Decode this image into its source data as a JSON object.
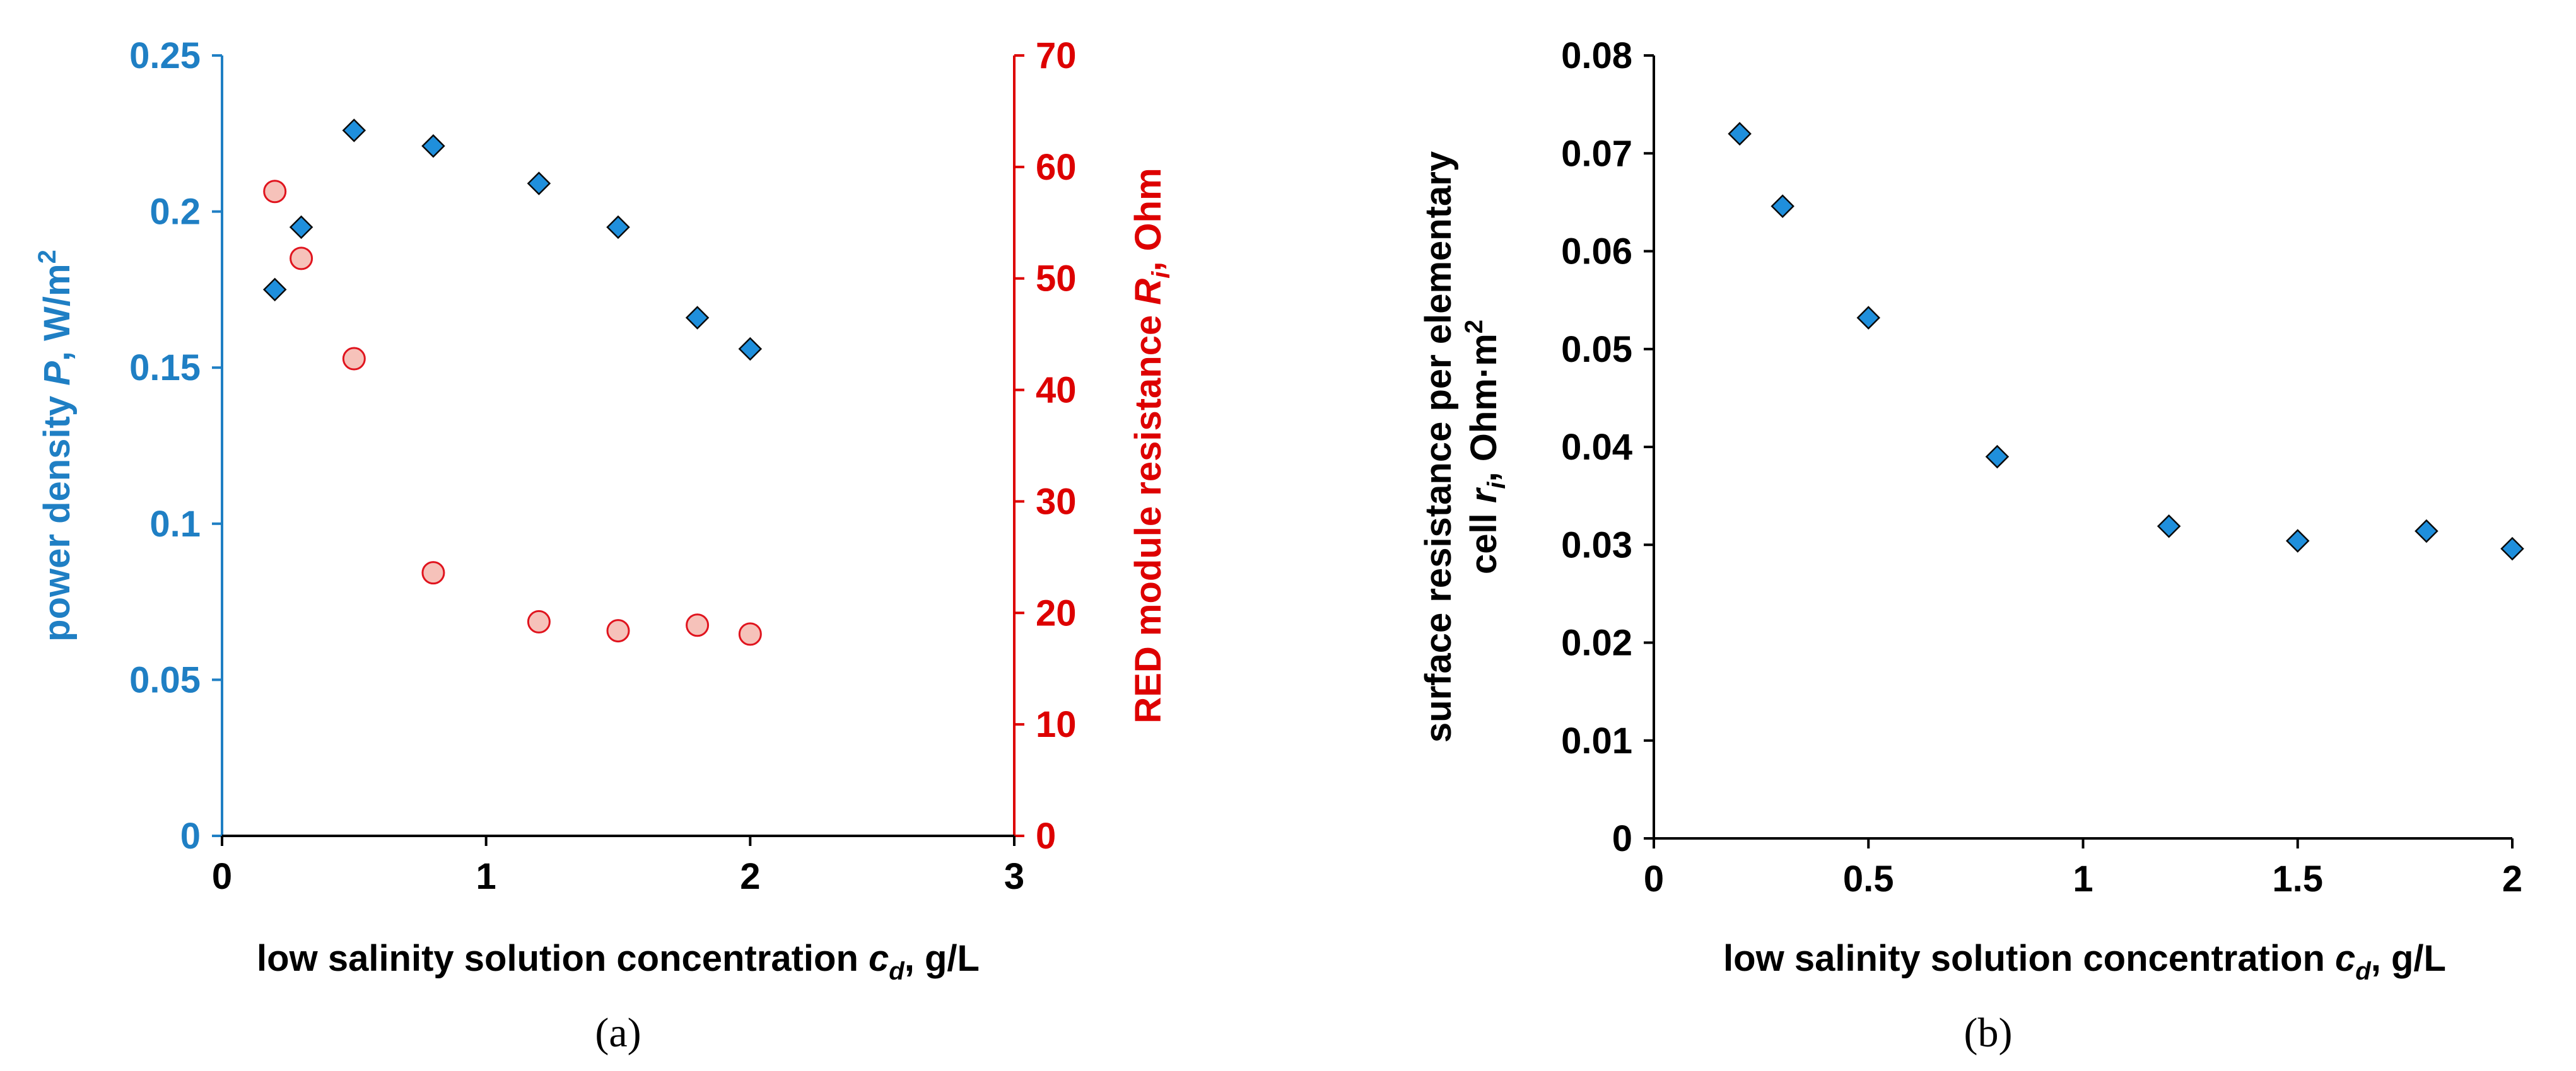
{
  "chart_data": [
    {
      "id": "a",
      "type": "scatter",
      "caption": "(a)",
      "xlabel": {
        "main": "low salinity solution concentration ",
        "var": "c",
        "sub": "d",
        "unit": ", g/L"
      },
      "xlim": [
        0,
        3
      ],
      "xticks": [
        "0",
        "1",
        "2",
        "3"
      ],
      "ylabel_left": {
        "main": "power density ",
        "var": "P",
        "unit": ", W/m",
        "sup": "2"
      },
      "ylim_left": [
        0,
        0.25
      ],
      "yticks_left": [
        "0",
        "0.05",
        "0.1",
        "0.15",
        "0.2",
        "0.25"
      ],
      "ylabel_right": {
        "main": "RED module resistance ",
        "var": "R",
        "sub": "i",
        "unit": ", Ohm"
      },
      "ylim_right": [
        0,
        70
      ],
      "yticks_right": [
        "0",
        "10",
        "20",
        "30",
        "40",
        "50",
        "60",
        "70"
      ],
      "series": [
        {
          "name": "power density P",
          "axis": "left",
          "marker": "diamond",
          "color": "#1f8fdc",
          "x": [
            0.2,
            0.3,
            0.5,
            0.8,
            1.2,
            1.5,
            1.8,
            2.0
          ],
          "y": [
            0.175,
            0.195,
            0.226,
            0.221,
            0.209,
            0.195,
            0.166,
            0.156
          ]
        },
        {
          "name": "RED module resistance Ri",
          "axis": "right",
          "marker": "circle",
          "color": "#f6c2ba",
          "x": [
            0.2,
            0.3,
            0.5,
            0.8,
            1.2,
            1.5,
            1.8,
            2.0
          ],
          "y": [
            57.8,
            51.8,
            42.8,
            23.6,
            19.2,
            18.4,
            18.9,
            18.1
          ]
        }
      ]
    },
    {
      "id": "b",
      "type": "scatter",
      "caption": "(b)",
      "xlabel": {
        "main": "low salinity solution concentration ",
        "var": "c",
        "sub": "d",
        "unit": ", g/L"
      },
      "xlim": [
        0,
        2
      ],
      "xticks": [
        "0",
        "0.5",
        "1",
        "1.5",
        "2"
      ],
      "ylabel_line1": "surface resistance per elementary",
      "ylabel_line2": {
        "main": "cell ",
        "var": "r",
        "sub": "i",
        "unit": ", Ohm·m",
        "sup": "2"
      },
      "ylim": [
        0,
        0.08
      ],
      "yticks": [
        "0",
        "0.01",
        "0.02",
        "0.03",
        "0.04",
        "0.05",
        "0.06",
        "0.07",
        "0.08"
      ],
      "series": [
        {
          "name": "surface resistance ri",
          "marker": "diamond",
          "color": "#1f8fdc",
          "x": [
            0.2,
            0.3,
            0.5,
            0.8,
            1.2,
            1.5,
            1.8,
            2.0
          ],
          "y": [
            0.072,
            0.0646,
            0.0532,
            0.039,
            0.0319,
            0.0304,
            0.0314,
            0.0296
          ]
        }
      ]
    }
  ],
  "colors": {
    "blue_axis": "#1f7fc4",
    "red_axis": "#dd0000",
    "black": "#000000"
  }
}
